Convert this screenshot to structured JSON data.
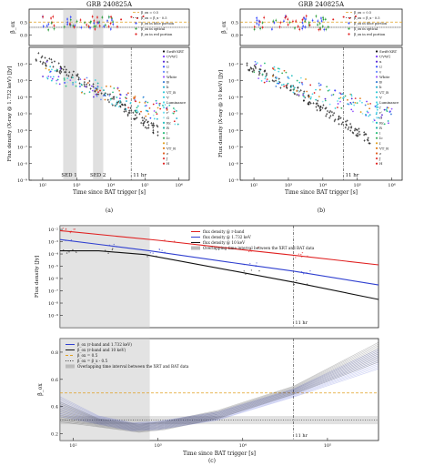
{
  "chart_data": [
    {
      "id": "a",
      "type": "scatter",
      "title": "GRB 240825A",
      "caption": "(a)",
      "top": {
        "ylabel": "β_ox",
        "ylim": [
          -0.4,
          1.0
        ],
        "yticks": [
          "0.0",
          "0.5"
        ],
        "legend": [
          "β_ox = 0.5",
          "β_ox = β_x - 0.5",
          "β_ox in blue portion",
          "β_ox in optical",
          "β_ox in red portion"
        ]
      },
      "bottom": {
        "ylabel": "Flux density (X-ray @ 1.732 keV) [Jy]",
        "xlabel": "Time since BAT trigger [s]",
        "xlim": [
          40,
          2000000
        ],
        "ylim": [
          1e-09,
          0.1
        ],
        "xticks": [
          "10²",
          "10³",
          "10⁴",
          "10⁵",
          "10⁶"
        ],
        "yticks": [
          "10⁻²",
          "10⁻³",
          "10⁻⁴",
          "10⁻⁵",
          "10⁻⁶",
          "10⁻⁷",
          "10⁻⁸",
          "10⁻⁹"
        ],
        "shaded_intervals": [
          [
            400,
            1000
          ],
          [
            3000,
            6000
          ]
        ],
        "annotations": [
          "SED 1",
          "SED 2",
          "11 hr"
        ],
        "legend": [
          "Swift-XRT",
          "UVW1",
          "u",
          "U",
          "v",
          "White",
          "B",
          "b",
          "VT_B",
          "V",
          "Luminance",
          "r",
          "r'",
          "G",
          "Rc",
          "R",
          "i",
          "Ic",
          "I",
          "VT_R",
          "z",
          "J",
          "H"
        ]
      }
    },
    {
      "id": "b",
      "type": "scatter",
      "title": "GRB 240825A",
      "caption": "(b)",
      "top": {
        "ylabel": "β_ox",
        "ylim": [
          -0.4,
          1.0
        ],
        "yticks": [
          "0.0",
          "0.5"
        ],
        "legend": [
          "β_ox = 0.5",
          "β_ox = β_x - 0.5",
          "β_ox in blue portion",
          "β_ox in optical",
          "β_ox in red portion"
        ]
      },
      "bottom": {
        "ylabel": "Flux density (X-ray @ 10 keV) [Jy]",
        "xlabel": "Time since BAT trigger [s]",
        "xlim": [
          40,
          2000000
        ],
        "ylim": [
          1e-09,
          0.1
        ],
        "xticks": [
          "10²",
          "10³",
          "10⁴",
          "10⁵",
          "10⁶"
        ],
        "yticks": [
          "10⁻²",
          "10⁻³",
          "10⁻⁴",
          "10⁻⁵",
          "10⁻⁶",
          "10⁻⁷",
          "10⁻⁸",
          "10⁻⁹"
        ],
        "annotations": [
          "11 hr"
        ],
        "legend": [
          "Swift-XRT",
          "UVW1",
          "u",
          "U",
          "v",
          "White",
          "B",
          "b",
          "VT_B",
          "V",
          "Luminance",
          "r",
          "r'",
          "G",
          "Rc",
          "R",
          "i",
          "Ic",
          "I",
          "VT_R",
          "z",
          "J",
          "H"
        ]
      }
    },
    {
      "id": "c",
      "type": "line",
      "caption": "(c)",
      "top": {
        "ylabel": "Flux density [Jy]",
        "xlim": [
          70,
          400000
        ],
        "ylim": [
          1e-10,
          0.02
        ],
        "yticks": [
          "10⁻²",
          "10⁻³",
          "10⁻⁴",
          "10⁻⁵",
          "10⁻⁶",
          "10⁻⁷",
          "10⁻⁸",
          "10⁻⁹"
        ],
        "shaded_interval": [
          70,
          800
        ],
        "annotations": [
          "11 hr"
        ],
        "series": [
          {
            "name": "flux density @ r-band",
            "color": "#e02020",
            "points": [
              [
                70,
                0.008
              ],
              [
                1000,
                0.0013
              ],
              [
                10000,
                0.00022
              ],
              [
                40000,
                8e-05
              ],
              [
                400000,
                1.3e-05
              ]
            ]
          },
          {
            "name": "flux density @ 1.732 keV",
            "color": "#3040d0",
            "points": [
              [
                70,
                0.0015
              ],
              [
                200,
                0.0006
              ],
              [
                800,
                0.00018
              ],
              [
                10000,
                1.5e-05
              ],
              [
                40000,
                4e-06
              ],
              [
                400000,
                3e-07
              ]
            ]
          },
          {
            "name": "flux density @ 10 keV",
            "color": "#111111",
            "points": [
              [
                70,
                0.00018
              ],
              [
                200,
                0.00018
              ],
              [
                700,
                9e-05
              ],
              [
                10000,
                3e-06
              ],
              [
                40000,
                5e-07
              ],
              [
                400000,
                2e-08
              ]
            ]
          }
        ],
        "legend": [
          "flux density @ r-band",
          "flux density @ 1.732 keV",
          "flux density @ 10 keV",
          "Overlapping time interval between the XRT and BAT data"
        ]
      },
      "bottom": {
        "ylabel": "β_ox",
        "xlabel": "Time since BAT trigger [s]",
        "xlim": [
          70,
          400000
        ],
        "ylim": [
          0.15,
          0.9
        ],
        "yticks": [
          "0.2",
          "0.4",
          "0.6",
          "0.8"
        ],
        "xticks": [
          "10²",
          "10³",
          "10⁴",
          "10⁵"
        ],
        "shaded_interval": [
          70,
          800
        ],
        "hband": [
          0.27,
          0.33
        ],
        "annotations": [
          "11 hr"
        ],
        "series": [
          {
            "name": "β_ox (r-band and 1.732 keV)",
            "color": "#3040d0",
            "points": [
              [
                70,
                0.4
              ],
              [
                200,
                0.3
              ],
              [
                500,
                0.25
              ],
              [
                1000,
                0.26
              ],
              [
                5000,
                0.33
              ],
              [
                40000,
                0.5
              ],
              [
                400000,
                0.75
              ]
            ]
          },
          {
            "name": "β_ox (r-band and 10 keV)",
            "color": "#111111",
            "points": [
              [
                70,
                0.36
              ],
              [
                200,
                0.28
              ],
              [
                600,
                0.24
              ],
              [
                1200,
                0.26
              ],
              [
                5000,
                0.34
              ],
              [
                40000,
                0.52
              ],
              [
                400000,
                0.8
              ]
            ]
          }
        ],
        "legend": [
          "β_ox (r-band and 1.732 keV)",
          "β_ox (r-band and 10 keV)",
          "β_ox = 0.5",
          "β_ox = β_x - 0.5",
          "Overlapping time interval between the XRT and BAT data"
        ]
      }
    }
  ]
}
